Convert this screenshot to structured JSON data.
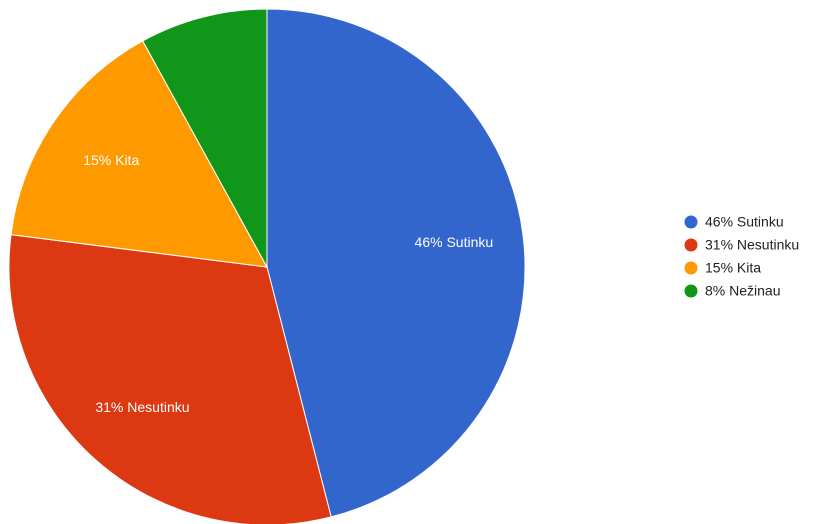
{
  "chart_data": {
    "type": "pie",
    "categories": [
      "46% Sutinku",
      "31% Nesutinku",
      "15% Kita",
      "8% Nežinau"
    ],
    "values": [
      46,
      31,
      15,
      8
    ],
    "colors": [
      "#3366cc",
      "#dc3912",
      "#ff9900",
      "#109618"
    ],
    "legend": "right"
  }
}
